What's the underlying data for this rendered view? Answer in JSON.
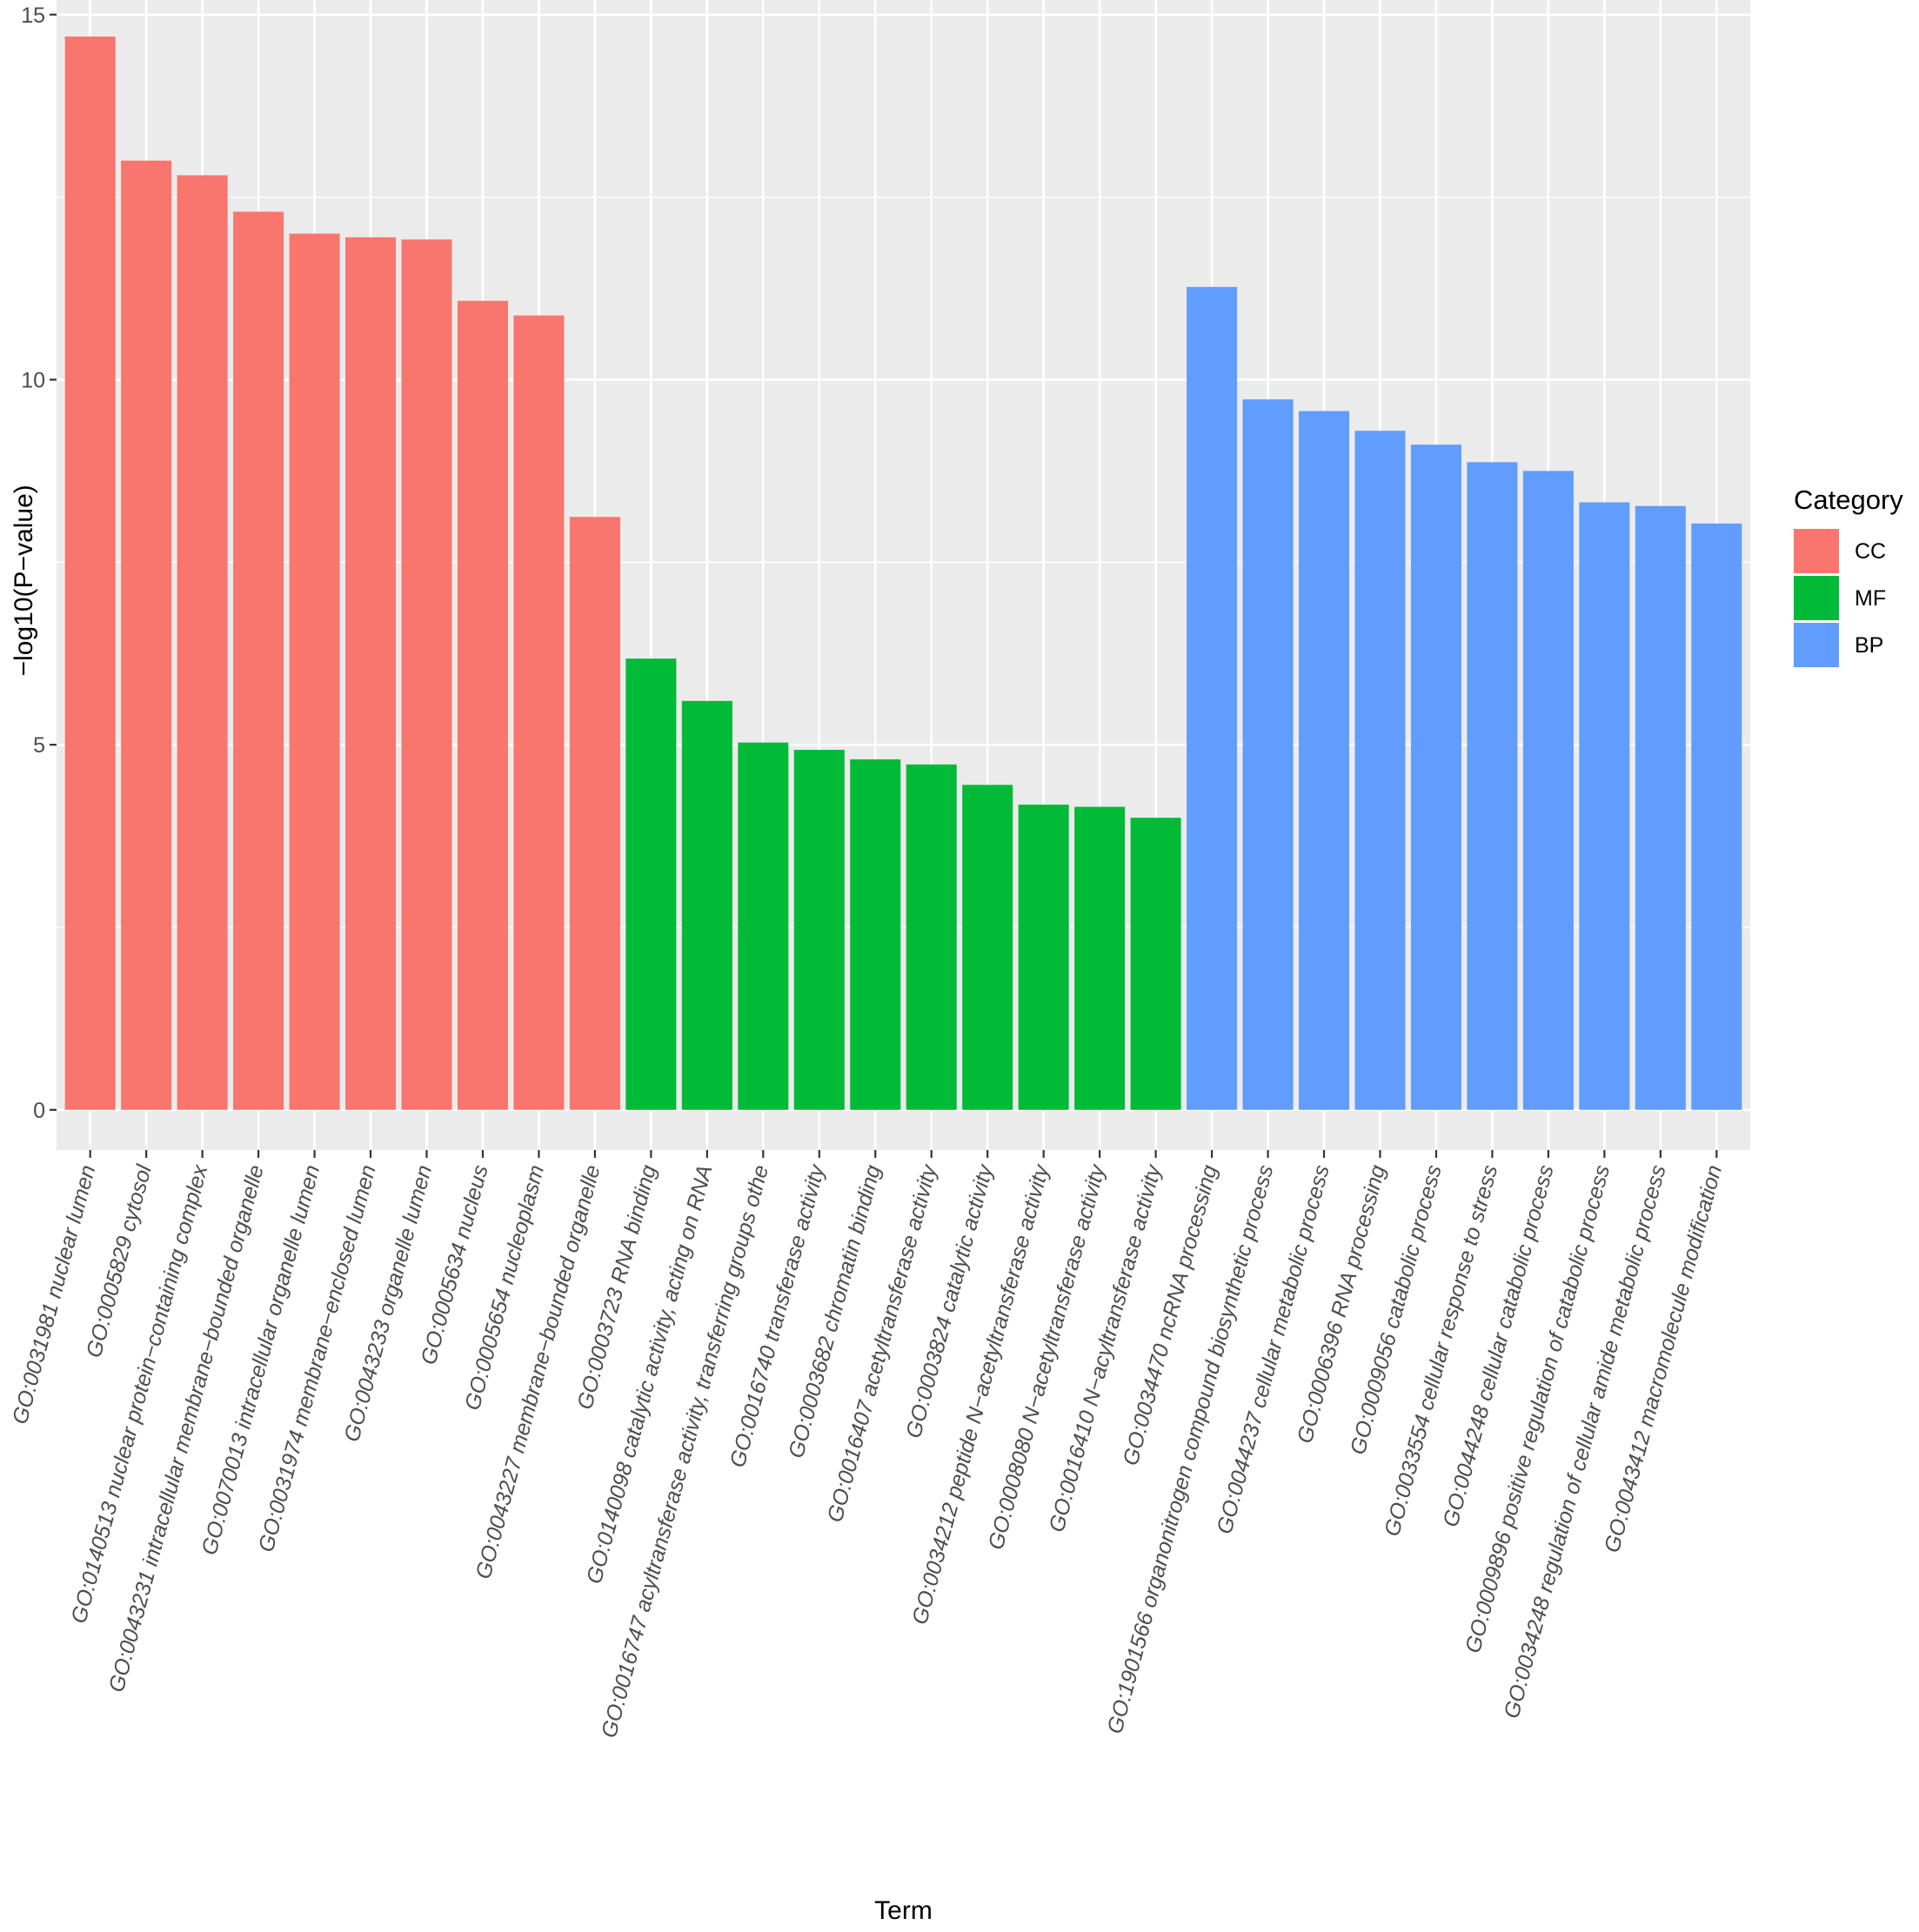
{
  "chart_data": {
    "type": "bar",
    "xlabel": "Term",
    "ylabel": "−log10(P−value)",
    "ylim": [
      -0.55,
      15.2
    ],
    "y_ticks": [
      0,
      5,
      10,
      15
    ],
    "grid": true,
    "legend": {
      "title": "Category",
      "position": "right",
      "entries": [
        {
          "label": "CC",
          "color": "#F8766D"
        },
        {
          "label": "MF",
          "color": "#00BA38"
        },
        {
          "label": "BP",
          "color": "#619CFF"
        }
      ]
    },
    "categories": [
      "GO:0031981 nuclear lumen",
      "GO:0005829 cytosol",
      "GO:0140513 nuclear protein−containing complex",
      "GO:0043231 intracellular membrane−bounded organelle",
      "GO:0070013 intracellular organelle lumen",
      "GO:0031974 membrane−enclosed lumen",
      "GO:0043233 organelle lumen",
      "GO:0005634 nucleus",
      "GO:0005654 nucleoplasm",
      "GO:0043227 membrane−bounded organelle",
      "GO:0003723 RNA binding",
      "GO:0140098 catalytic activity, acting on RNA",
      "GO:0016747 acyltransferase activity, transferring groups othe",
      "GO:0016740 transferase activity",
      "GO:0003682 chromatin binding",
      "GO:0016407 acetyltransferase activity",
      "GO:0003824 catalytic activity",
      "GO:0034212 peptide N−acetyltransferase activity",
      "GO:0008080 N−acetyltransferase activity",
      "GO:0016410 N−acyltransferase activity",
      "GO:0034470 ncRNA processing",
      "GO:1901566 organonitrogen compound biosynthetic process",
      "GO:0044237 cellular metabolic process",
      "GO:0006396 RNA processing",
      "GO:0009056 catabolic process",
      "GO:0033554 cellular response to stress",
      "GO:0044248 cellular catabolic process",
      "GO:0009896 positive regulation of catabolic process",
      "GO:0034248 regulation of cellular amide metabolic process",
      "GO:0043412 macromolecule modification"
    ],
    "values": [
      14.7,
      13.0,
      12.8,
      12.3,
      12.0,
      11.95,
      11.92,
      11.08,
      10.88,
      8.12,
      6.18,
      5.6,
      5.03,
      4.93,
      4.8,
      4.73,
      4.45,
      4.18,
      4.15,
      4.0,
      11.27,
      9.73,
      9.57,
      9.3,
      9.11,
      8.87,
      8.75,
      8.32,
      8.27,
      8.03
    ],
    "category_group": [
      "CC",
      "CC",
      "CC",
      "CC",
      "CC",
      "CC",
      "CC",
      "CC",
      "CC",
      "CC",
      "MF",
      "MF",
      "MF",
      "MF",
      "MF",
      "MF",
      "MF",
      "MF",
      "MF",
      "MF",
      "BP",
      "BP",
      "BP",
      "BP",
      "BP",
      "BP",
      "BP",
      "BP",
      "BP",
      "BP"
    ]
  },
  "colors": {
    "panel_background": "#EBEBEB",
    "grid_major": "#FFFFFF",
    "tick_text": "#4D4D4D",
    "CC": "#F8766D",
    "MF": "#00BA38",
    "BP": "#619CFF"
  }
}
